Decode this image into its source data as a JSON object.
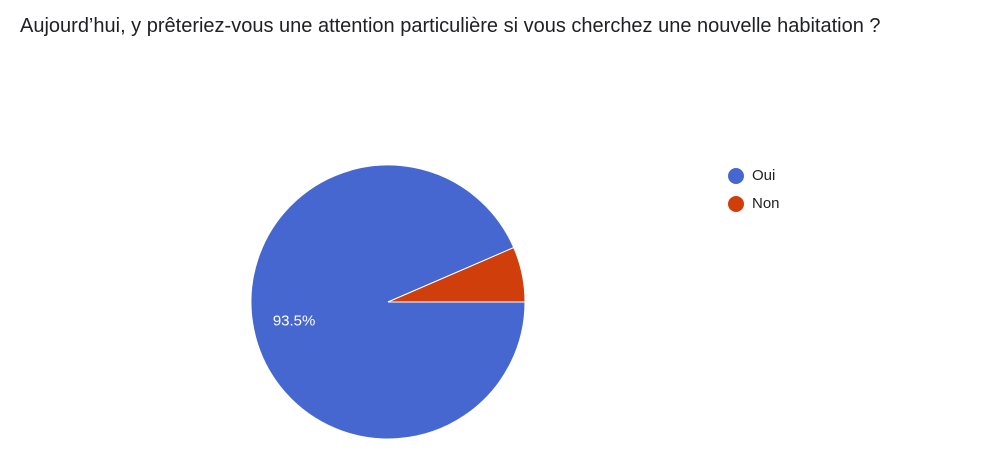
{
  "chart_data": {
    "type": "pie",
    "title": "Aujourd’hui, y prêteriez-vous une attention particulière si vous cherchez une nouvelle habitation ?",
    "categories": [
      "Oui",
      "Non"
    ],
    "values": [
      93.5,
      6.5
    ],
    "value_labels": [
      "93.5%",
      null
    ],
    "colors": [
      "#4567cf",
      "#d03e0c"
    ],
    "legend": "right"
  }
}
